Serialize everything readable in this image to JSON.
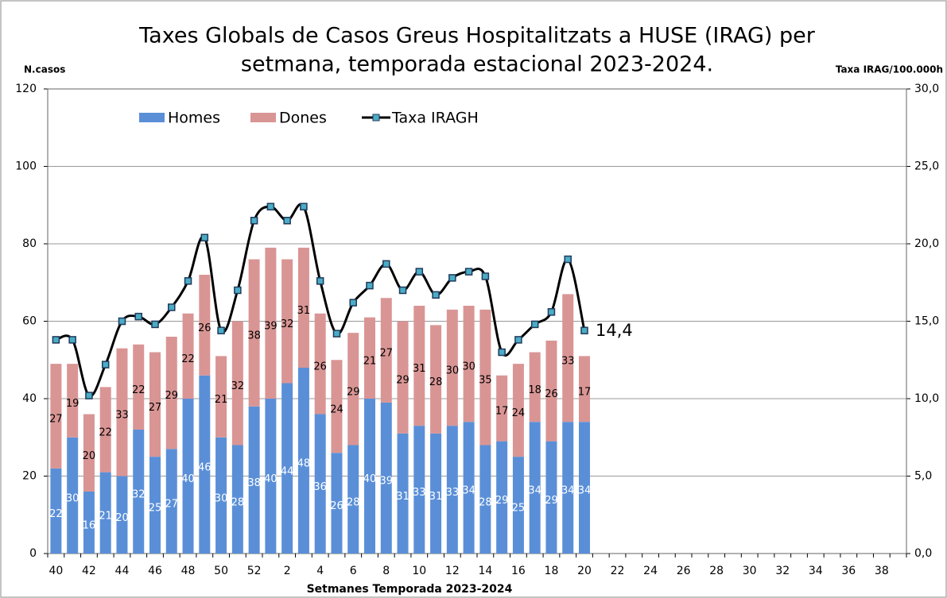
{
  "chart_data": {
    "type": "bar",
    "title": [
      "Taxes Globals  de Casos Greus Hospitalitzats a HUSE (IRAG) per",
      "setmana, temporada estacional 2023-2024."
    ],
    "y_label": "N.casos",
    "y2_label": "Taxa IRAG/100.000h",
    "x_label": "Setmanes  Temporada 2023-2024",
    "categories": [
      "40",
      null,
      "42",
      null,
      "44",
      null,
      "46",
      null,
      "48",
      null,
      "50",
      null,
      "52",
      null,
      "2",
      null,
      "4",
      null,
      "6",
      null,
      "8",
      null,
      "10",
      null,
      "12",
      null,
      "14",
      null,
      "16",
      null,
      "18",
      null,
      "20",
      null,
      "22",
      null,
      "24",
      null,
      "26",
      null,
      "28",
      null,
      "30",
      null,
      "32",
      null,
      "34",
      null,
      "36",
      null,
      "38",
      null
    ],
    "series": [
      {
        "name": "Homes",
        "color": "#5a8fd8",
        "stacked": true,
        "values": [
          22,
          30,
          16,
          21,
          20,
          32,
          25,
          27,
          40,
          46,
          30,
          28,
          38,
          40,
          44,
          48,
          36,
          26,
          28,
          40,
          39,
          31,
          33,
          31,
          33,
          34,
          28,
          29,
          25,
          34,
          29,
          34,
          34,
          null,
          null,
          null,
          null,
          null,
          null,
          null,
          null,
          null,
          null,
          null,
          null,
          null,
          null,
          null,
          null,
          null,
          null,
          null
        ]
      },
      {
        "name": "Dones",
        "color": "#d99594",
        "stacked": true,
        "values": [
          27,
          19,
          20,
          22,
          33,
          22,
          27,
          29,
          22,
          26,
          21,
          32,
          38,
          39,
          32,
          31,
          26,
          24,
          29,
          21,
          27,
          29,
          31,
          28,
          30,
          30,
          35,
          17,
          24,
          18,
          26,
          33,
          17,
          null,
          null,
          null,
          null,
          null,
          null,
          null,
          null,
          null,
          null,
          null,
          null,
          null,
          null,
          null,
          null,
          null,
          null,
          null
        ]
      },
      {
        "name": "Taxa IRAGH",
        "color": "#000000",
        "marker_color": "#4bacc6",
        "type": "line",
        "axis": "y2",
        "values": [
          13.8,
          13.8,
          10.2,
          12.2,
          15.0,
          15.3,
          14.8,
          15.9,
          17.6,
          20.4,
          14.4,
          17.0,
          21.5,
          22.4,
          21.5,
          22.4,
          17.6,
          14.2,
          16.2,
          17.3,
          18.7,
          17.0,
          18.2,
          16.7,
          17.8,
          18.2,
          17.9,
          13.0,
          13.8,
          14.8,
          15.6,
          19.0,
          14.4,
          null,
          null,
          null,
          null,
          null,
          null,
          null,
          null,
          null,
          null,
          null,
          null,
          null,
          null,
          null,
          null,
          null,
          null,
          null
        ],
        "value_labels": [
          null,
          null,
          null,
          null,
          null,
          null,
          null,
          null,
          null,
          null,
          null,
          null,
          null,
          null,
          null,
          null,
          null,
          null,
          null,
          null,
          null,
          null,
          null,
          null,
          null,
          null,
          null,
          null,
          null,
          null,
          null,
          null,
          "14,4",
          null,
          null,
          null,
          null,
          null,
          null,
          null,
          null,
          null,
          null,
          null,
          null,
          null,
          null,
          null,
          null,
          null,
          null,
          null
        ]
      }
    ],
    "ylim": [
      0,
      120
    ],
    "yticks": [
      0,
      20,
      40,
      60,
      80,
      100,
      120
    ],
    "y2lim": [
      0,
      30
    ],
    "y2ticks": [
      {
        "value": 0,
        "label": "0,0"
      },
      {
        "value": 5,
        "label": "5,0"
      },
      {
        "value": 10,
        "label": "10,0"
      },
      {
        "value": 15,
        "label": "15,0"
      },
      {
        "value": 20,
        "label": "20,0"
      },
      {
        "value": 25,
        "label": "25,0"
      },
      {
        "value": 30,
        "label": "30,0"
      }
    ],
    "grid": true,
    "legend": "top-left"
  }
}
